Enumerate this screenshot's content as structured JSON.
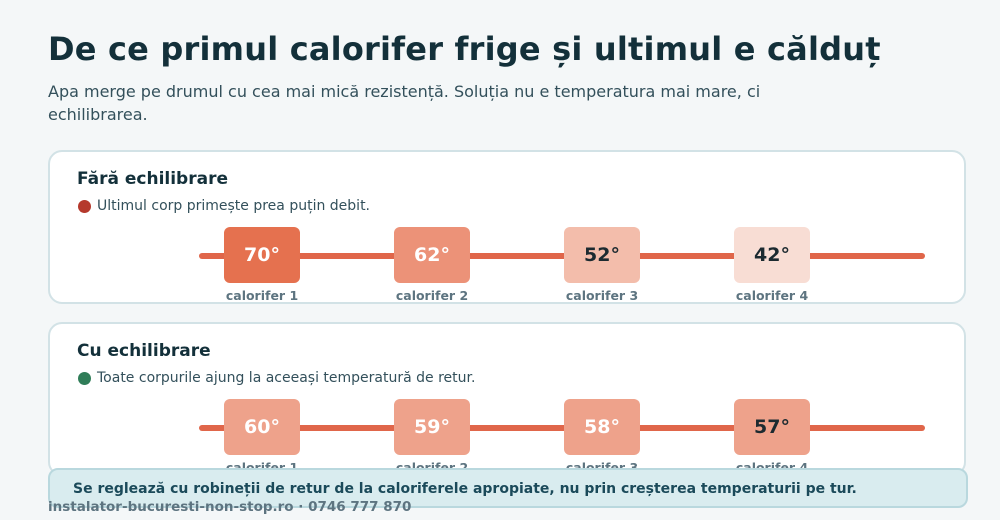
{
  "title": "De ce primul calorifer frige și ultimul e călduț",
  "subtitle": "Apa merge pe drumul cu cea mai mică rezistență. Soluția nu e temperatura mai mare, ci echilibrarea.",
  "colors": {
    "pipe": "#e0664a",
    "bad_dot": "#b5392c",
    "good_dot": "#2f7d58"
  },
  "panels": [
    {
      "title": "Fără echilibrare",
      "note": "Ultimul corp primește prea puțin debit.",
      "status_icon": "red-dot-icon",
      "radiators": [
        {
          "value": "70°",
          "label": "calorifer 1",
          "bg": "#e5714f",
          "fg": "#ffffff"
        },
        {
          "value": "62°",
          "label": "calorifer 2",
          "bg": "#ec9278",
          "fg": "#ffffff"
        },
        {
          "value": "52°",
          "label": "calorifer 3",
          "bg": "#f3bdab",
          "fg": "#1c2a30"
        },
        {
          "value": "42°",
          "label": "calorifer 4",
          "bg": "#f8ddd4",
          "fg": "#1c2a30"
        }
      ]
    },
    {
      "title": "Cu echilibrare",
      "note": "Toate corpurile ajung la aceeași temperatură de retur.",
      "status_icon": "green-dot-icon",
      "radiators": [
        {
          "value": "60°",
          "label": "calorifer 1",
          "bg": "#eea28b",
          "fg": "#ffffff"
        },
        {
          "value": "59°",
          "label": "calorifer 2",
          "bg": "#eea28b",
          "fg": "#ffffff"
        },
        {
          "value": "58°",
          "label": "calorifer 3",
          "bg": "#eea28b",
          "fg": "#ffffff"
        },
        {
          "value": "57°",
          "label": "calorifer 4",
          "bg": "#eea28b",
          "fg": "#1c2a30"
        }
      ]
    }
  ],
  "banner": "Se reglează cu robineții de retur de la caloriferele apropiate, nu prin creșterea temperaturii pe tur.",
  "footer": "instalator-bucuresti-non-stop.ro · 0746 777 870"
}
